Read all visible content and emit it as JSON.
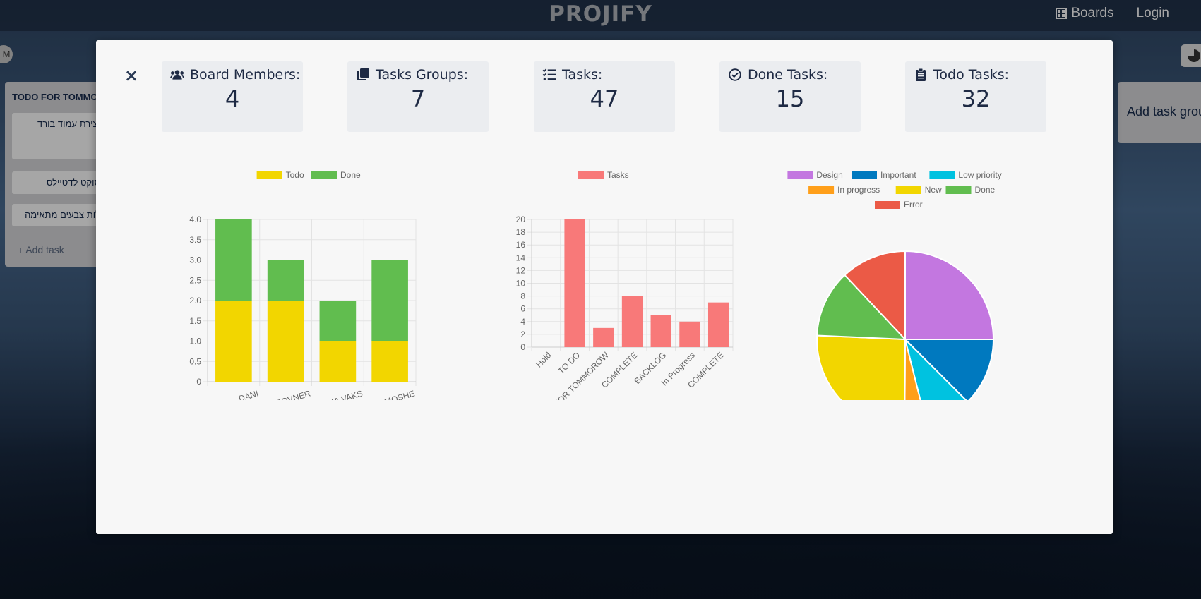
{
  "header": {
    "logo": "PROJIFY",
    "nav": {
      "boards_label": "Boards",
      "login_label": "Login"
    }
  },
  "board": {
    "avatar_initial": "M",
    "group": {
      "title": "TODO FOR TOMMC",
      "tasks": [
        "יצירת עמוד בורד",
        "סוקט לדטיילס",
        "לות צבעים מתאימה"
      ],
      "add_task": "+ Add task"
    },
    "add_group": "Add task group"
  },
  "modal": {
    "close_label": "×",
    "stats": [
      {
        "label": "Board Members:",
        "value": "4",
        "icon": "users-icon"
      },
      {
        "label": "Tasks Groups:",
        "value": "7",
        "icon": "clone-icon"
      },
      {
        "label": "Tasks:",
        "value": "47",
        "icon": "tasks-icon"
      },
      {
        "label": "Done Tasks:",
        "value": "15",
        "icon": "check-circle-icon"
      },
      {
        "label": "Todo Tasks:",
        "value": "32",
        "icon": "clipboard-icon"
      }
    ]
  },
  "chart_data": [
    {
      "type": "bar",
      "stacked": true,
      "categories": [
        "DANI",
        "YAKOV ZOVNER",
        "ASIA VAKS",
        "YAEL MOSHE"
      ],
      "series": [
        {
          "name": "Todo",
          "values": [
            2,
            2,
            1,
            1
          ],
          "color": "#f2d600"
        },
        {
          "name": "Done",
          "values": [
            2,
            1,
            1,
            2
          ],
          "color": "#61bd4f"
        }
      ],
      "ylim": [
        0,
        4
      ],
      "yticks": [
        "4.0",
        "3.5",
        "3.0",
        "2.5",
        "2.0",
        "1.5",
        "1.0",
        "0.5",
        "0"
      ],
      "grid": true,
      "legend": "top"
    },
    {
      "type": "bar",
      "categories": [
        "Hold",
        "TO DO",
        "TODO FOR TOMMOROW",
        "COMPLETE",
        "BACKLOG",
        "In Progress",
        "COMPLETE"
      ],
      "series": [
        {
          "name": "Tasks",
          "values": [
            0,
            20,
            3,
            8,
            5,
            4,
            7
          ],
          "color": "#f87979"
        }
      ],
      "ylim": [
        0,
        20
      ],
      "yticks": [
        "20",
        "18",
        "16",
        "14",
        "12",
        "10",
        "8",
        "6",
        "4",
        "2",
        "0"
      ],
      "grid": true,
      "legend": "top"
    },
    {
      "type": "pie",
      "labels": [
        "Design",
        "Important",
        "Low priority",
        "In progress",
        "New",
        "Done",
        "Error"
      ],
      "values": [
        25,
        12.5,
        8.6,
        4,
        25.6,
        12.3,
        12
      ],
      "colors": [
        "#c377e0",
        "#0079bf",
        "#00c2e0",
        "#ff9f1a",
        "#f2d600",
        "#61bd4f",
        "#eb5a46"
      ],
      "legend": "top"
    }
  ]
}
